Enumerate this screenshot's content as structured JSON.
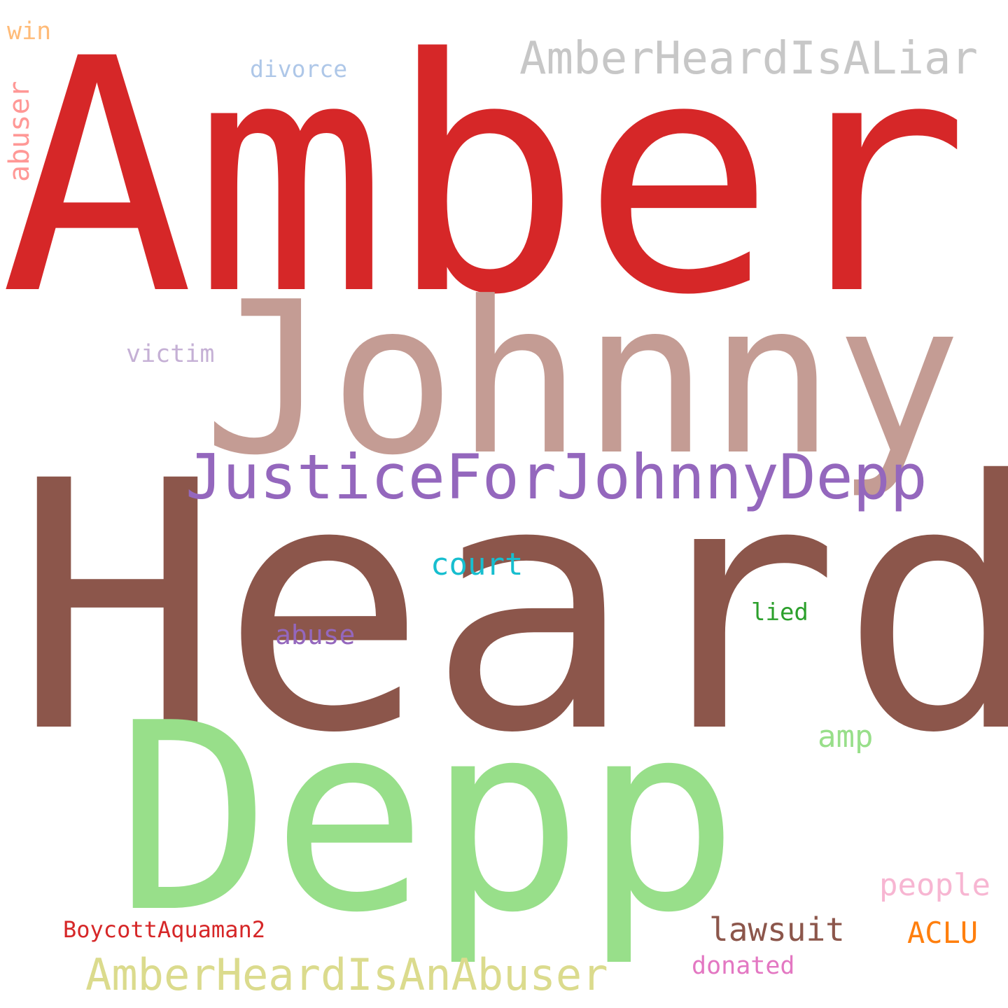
{
  "words": [
    {
      "id": "amber",
      "text": "Amber",
      "color": "#d62728"
    },
    {
      "id": "heard",
      "text": "Heard",
      "color": "#8c564b"
    },
    {
      "id": "johnny",
      "text": "Johnny",
      "color": "#c49c94"
    },
    {
      "id": "depp",
      "text": "Depp",
      "color": "#98df8a"
    },
    {
      "id": "justicefor",
      "text": "JusticeForJohnnyDepp",
      "color": "#9467bd"
    },
    {
      "id": "liar",
      "text": "AmberHeardIsALiar",
      "color": "#c7c7c7"
    },
    {
      "id": "abuser-tag",
      "text": "AmberHeardIsAnAbuser",
      "color": "#dbdb8d"
    },
    {
      "id": "court",
      "text": "court",
      "color": "#17becf"
    },
    {
      "id": "abuse",
      "text": "abuse",
      "color": "#9467bd"
    },
    {
      "id": "lied",
      "text": "lied",
      "color": "#2ca02c"
    },
    {
      "id": "amp",
      "text": "amp",
      "color": "#98df8a"
    },
    {
      "id": "people",
      "text": "people",
      "color": "#f7b6d2"
    },
    {
      "id": "lawsuit",
      "text": "lawsuit",
      "color": "#8c564b"
    },
    {
      "id": "aclu",
      "text": "ACLU",
      "color": "#ff7f0e"
    },
    {
      "id": "donated",
      "text": "donated",
      "color": "#e377c2"
    },
    {
      "id": "boycott",
      "text": "BoycottAquaman2",
      "color": "#d62728"
    },
    {
      "id": "victim",
      "text": "victim",
      "color": "#c5b0d5"
    },
    {
      "id": "divorce",
      "text": "divorce",
      "color": "#aec7e8"
    },
    {
      "id": "win",
      "text": "win",
      "color": "#ffbb78"
    },
    {
      "id": "abuser",
      "text": "abuser",
      "color": "#ff9896"
    }
  ]
}
